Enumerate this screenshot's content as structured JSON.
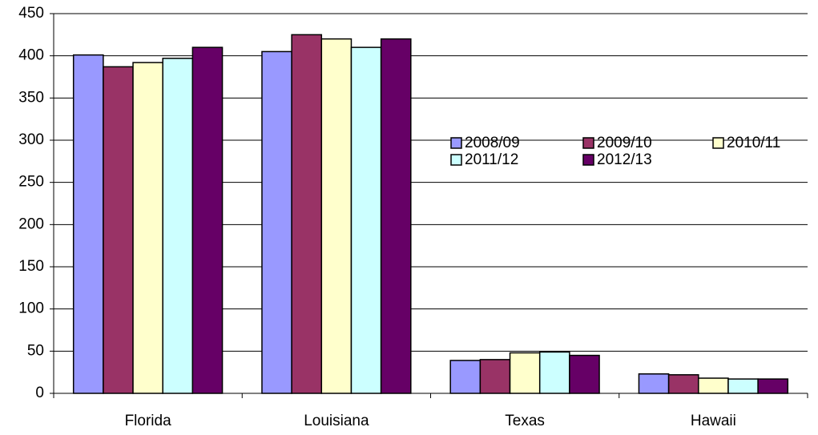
{
  "chart_data": {
    "type": "bar",
    "categories": [
      "Florida",
      "Louisiana",
      "Texas",
      "Hawaii"
    ],
    "series": [
      {
        "name": "2008/09",
        "color": "#9999ff",
        "values": [
          401,
          405,
          39,
          23
        ]
      },
      {
        "name": "2009/10",
        "color": "#993366",
        "values": [
          387,
          425,
          40,
          22
        ]
      },
      {
        "name": "2010/11",
        "color": "#ffffcc",
        "values": [
          392,
          420,
          48,
          18
        ]
      },
      {
        "name": "2011/12",
        "color": "#ccffff",
        "values": [
          397,
          410,
          49,
          17
        ]
      },
      {
        "name": "2012/13",
        "color": "#660066",
        "values": [
          410,
          420,
          45,
          17
        ]
      }
    ],
    "ylim": [
      0,
      450
    ],
    "yticks": [
      0,
      50,
      100,
      150,
      200,
      250,
      300,
      350,
      400,
      450
    ],
    "grid": true
  }
}
